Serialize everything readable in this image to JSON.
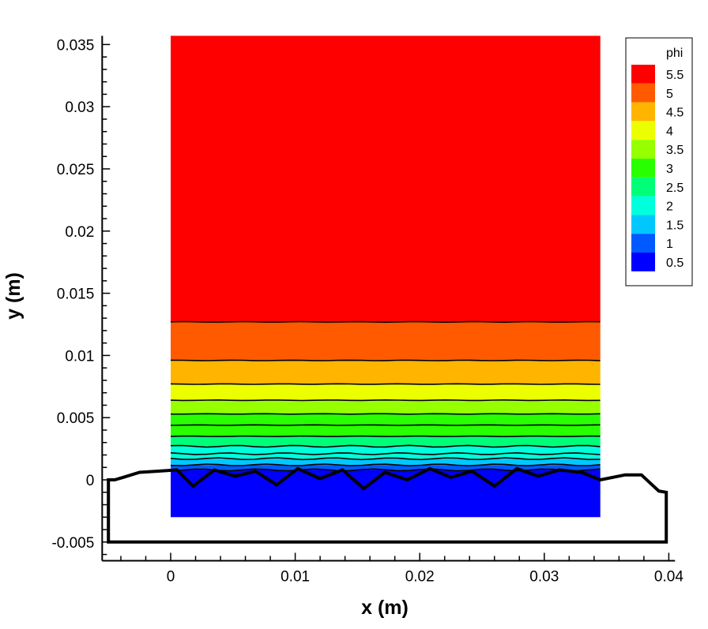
{
  "chart_data": {
    "type": "contour",
    "xlabel": "x (m)",
    "ylabel": "y (m)",
    "xlim": [
      -0.0055,
      0.0405
    ],
    "ylim": [
      -0.0065,
      0.0357
    ],
    "x_ticks": [
      "0",
      "0.01",
      "0.02",
      "0.03",
      "0.04"
    ],
    "x_tick_values": [
      0,
      0.01,
      0.02,
      0.03,
      0.04
    ],
    "y_ticks": [
      "0.035",
      "0.03",
      "0.025",
      "0.02",
      "0.015",
      "0.01",
      "0.005",
      "0",
      "-0.005"
    ],
    "y_tick_values": [
      0.035,
      0.03,
      0.025,
      0.02,
      0.015,
      0.01,
      0.005,
      0,
      -0.005
    ],
    "legend": {
      "title": "phi",
      "placement": "top-right",
      "levels": [
        "5.5",
        "5",
        "4.5",
        "4",
        "3.5",
        "3",
        "2.5",
        "2",
        "1.5",
        "1",
        "0.5"
      ],
      "colors": [
        "#ff0000",
        "#ff5a00",
        "#ffb400",
        "#ebff00",
        "#96ff00",
        "#28ff00",
        "#00ff78",
        "#00ffdc",
        "#00c8ff",
        "#005aff",
        "#0000ff"
      ]
    },
    "domain": {
      "x": [
        0,
        0.0345
      ],
      "y": [
        -0.003,
        0.0357
      ]
    },
    "bands": [
      {
        "phi": "0.5",
        "y0": -0.003,
        "y1": 0.0008,
        "color": "#0000ff"
      },
      {
        "phi": "1",
        "y0": 0.0008,
        "y1": 0.0012,
        "color": "#005aff"
      },
      {
        "phi": "1.5",
        "y0": 0.0012,
        "y1": 0.0017,
        "color": "#00c8ff"
      },
      {
        "phi": "2",
        "y0": 0.0017,
        "y1": 0.0027,
        "color": "#00ffdc"
      },
      {
        "phi": "2.5",
        "y0": 0.0027,
        "y1": 0.0035,
        "color": "#00ff78"
      },
      {
        "phi": "3",
        "y0": 0.0035,
        "y1": 0.0053,
        "color": "#28ff00"
      },
      {
        "phi": "3.5",
        "y0": 0.0053,
        "y1": 0.0064,
        "color": "#96ff00"
      },
      {
        "phi": "4",
        "y0": 0.0064,
        "y1": 0.0077,
        "color": "#ebff00"
      },
      {
        "phi": "4.5",
        "y0": 0.0077,
        "y1": 0.0096,
        "color": "#ffb400"
      },
      {
        "phi": "5",
        "y0": 0.0096,
        "y1": 0.0127,
        "color": "#ff5a00"
      },
      {
        "phi": "5.5",
        "y0": 0.0127,
        "y1": 0.0357,
        "color": "#ff0000"
      }
    ],
    "contour_levels_y": [
      0.0127,
      0.0096,
      0.0077,
      0.0064,
      0.0053,
      0.0044,
      0.0035,
      0.0027,
      0.0021,
      0.0017,
      0.0012,
      0.0008
    ],
    "outline": {
      "x": [
        -0.005,
        -0.005,
        -0.0045,
        -0.0038,
        -0.0025,
        -0.001,
        0.0005,
        0.0018,
        0.0035,
        0.0052,
        0.0068,
        0.0085,
        0.0102,
        0.012,
        0.0138,
        0.0155,
        0.0172,
        0.019,
        0.0208,
        0.0225,
        0.0242,
        0.026,
        0.0278,
        0.0295,
        0.0312,
        0.033,
        0.0345,
        0.0365,
        0.0378,
        0.0392,
        0.0398,
        0.0398
      ],
      "y": [
        -0.005,
        0.0,
        0.0,
        0.0002,
        0.0006,
        0.0007,
        0.0008,
        -0.0005,
        0.0008,
        0.0003,
        0.0007,
        -0.0004,
        0.0009,
        0.0001,
        0.0008,
        -0.0007,
        0.0006,
        0.0,
        0.0009,
        0.0002,
        0.0007,
        -0.0005,
        0.0009,
        0.0003,
        0.0008,
        0.0006,
        0.0,
        0.0004,
        0.0004,
        -0.0009,
        -0.001,
        -0.005
      ]
    }
  }
}
